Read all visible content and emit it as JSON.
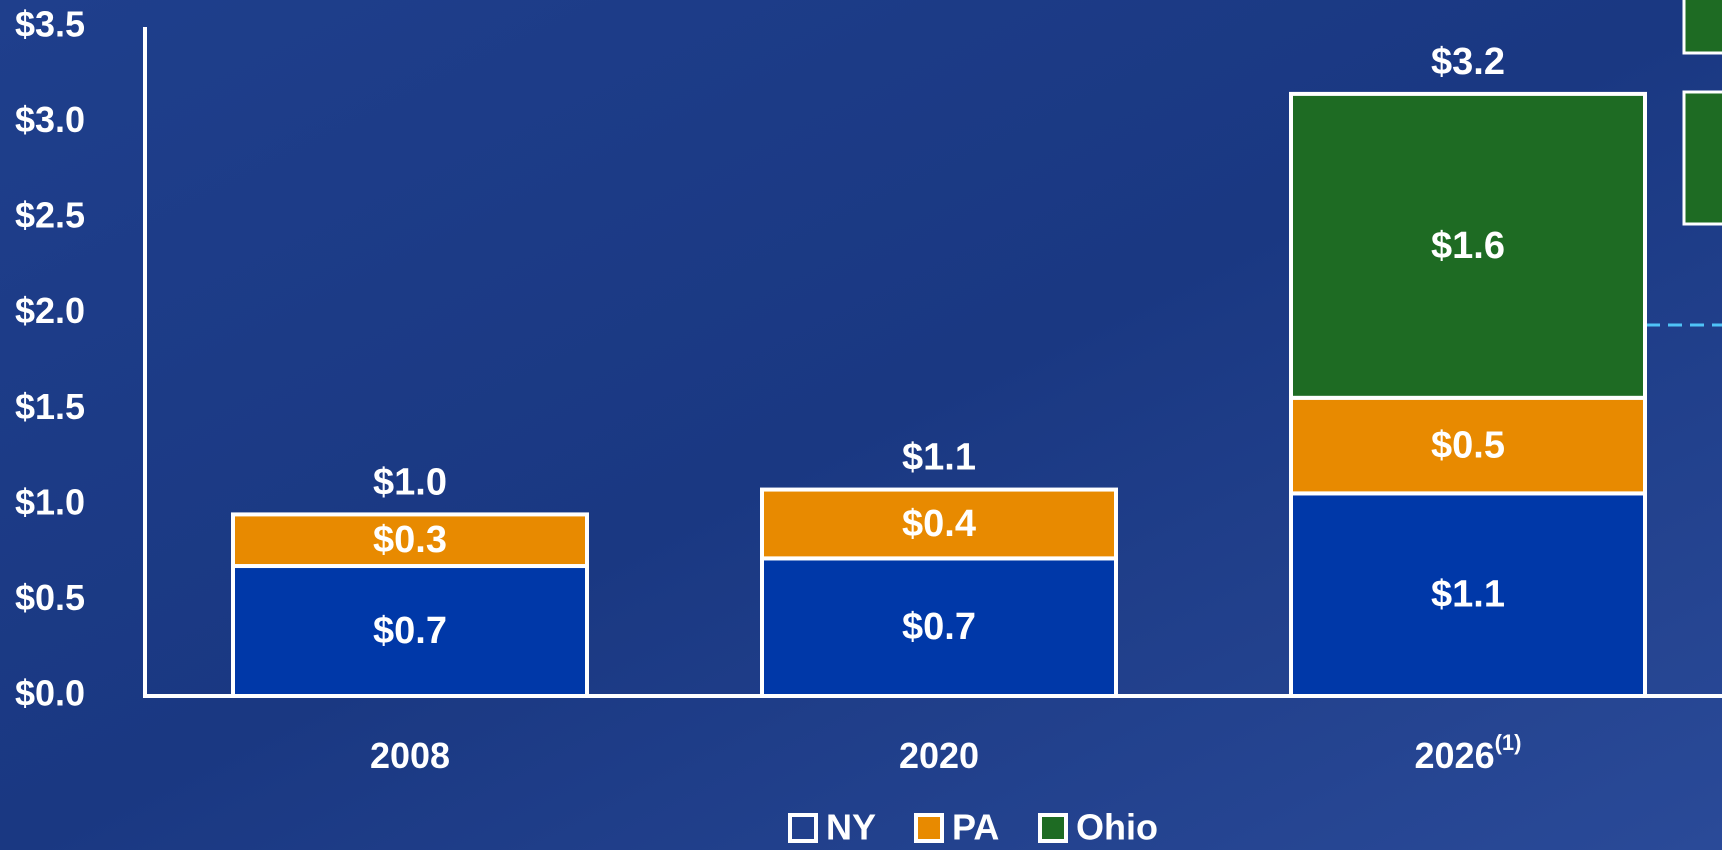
{
  "chart_data": {
    "type": "stacked_bar",
    "categories": [
      "2008",
      "2020",
      "2026"
    ],
    "category_notes": [
      null,
      null,
      "(1)"
    ],
    "series": [
      {
        "name": "NY",
        "color": "#0038a8",
        "values": [
          0.68,
          0.72,
          1.06
        ],
        "value_labels": [
          "$0.7",
          "$0.7",
          "$1.1"
        ]
      },
      {
        "name": "PA",
        "color": "#e88a00",
        "values": [
          0.27,
          0.36,
          0.5
        ],
        "value_labels": [
          "$0.3",
          "$0.4",
          "$0.5"
        ]
      },
      {
        "name": "Ohio",
        "color": "#1e6b23",
        "values": [
          null,
          null,
          1.59
        ],
        "value_labels": [
          null,
          null,
          "$1.6"
        ]
      }
    ],
    "total_labels": [
      "$1.0",
      "$1.1",
      "$3.2"
    ],
    "ylim": [
      0,
      3.5
    ],
    "yticks": [
      {
        "value": 0,
        "label": "$0.0"
      },
      {
        "value": 0.5,
        "label": "$0.5"
      },
      {
        "value": 1,
        "label": "$1.0"
      },
      {
        "value": 1.5,
        "label": "$1.5"
      },
      {
        "value": 2,
        "label": "$2.0"
      },
      {
        "value": 2.5,
        "label": "$2.5"
      },
      {
        "value": 3,
        "label": "$3.0"
      },
      {
        "value": 3.5,
        "label": "$3.5"
      }
    ],
    "legend": "bottom"
  }
}
